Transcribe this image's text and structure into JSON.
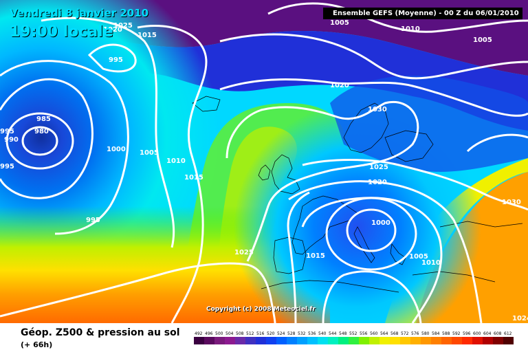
{
  "header": {
    "date": "Vendredi 8 janvier 2010",
    "time": "19:00 locale",
    "run_info": "Ensemble GEFS (Moyenne)  -  00 Z du 06/01/2010"
  },
  "map": {
    "copyright": "Copyright (c) 2008 Meteociel.fr",
    "isobar_labels": [
      "1025",
      "1020",
      "1015",
      "995",
      "985",
      "980",
      "995",
      "990",
      "995",
      "1000",
      "1005",
      "1010",
      "1015",
      "995",
      "1025",
      "1020",
      "1015",
      "1030",
      "1025",
      "1020",
      "1000",
      "1005",
      "1010",
      "1030",
      "1024",
      "1005",
      "1010",
      "1005"
    ]
  },
  "footer": {
    "title": "Géop. Z500 & pression au sol",
    "subtitle": "(+ 66h)"
  },
  "legend": {
    "values": [
      "492",
      "496",
      "500",
      "504",
      "508",
      "512",
      "516",
      "520",
      "524",
      "528",
      "532",
      "536",
      "540",
      "544",
      "548",
      "552",
      "556",
      "560",
      "564",
      "568",
      "572",
      "576",
      "580",
      "584",
      "588",
      "592",
      "596",
      "600",
      "604",
      "608",
      "612"
    ],
    "colors": [
      "#3a0040",
      "#5a0a5e",
      "#7a1a7c",
      "#8c1a90",
      "#6a2aa8",
      "#4030c0",
      "#2030d8",
      "#1040f0",
      "#0060ff",
      "#0080ff",
      "#00a0ff",
      "#00c0ff",
      "#00e0f0",
      "#00f0c0",
      "#00f080",
      "#30f040",
      "#80f000",
      "#c0f000",
      "#f0f000",
      "#ffe000",
      "#ffc800",
      "#ffb000",
      "#ff9800",
      "#ff8000",
      "#ff6400",
      "#ff4800",
      "#ff2a00",
      "#e01000",
      "#b00000",
      "#800000",
      "#500000"
    ]
  }
}
